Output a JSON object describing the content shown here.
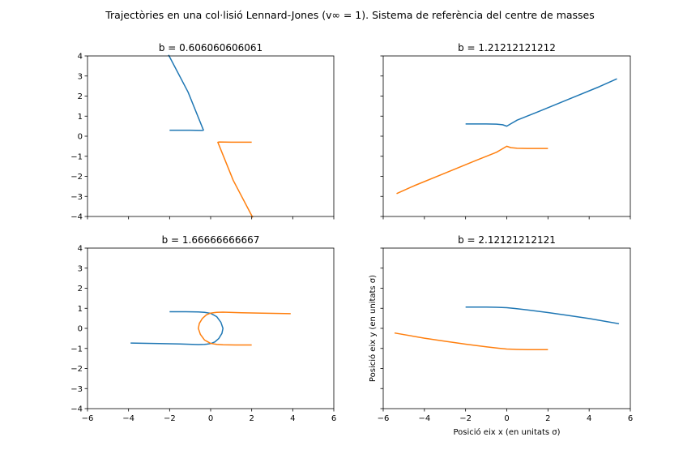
{
  "figure": {
    "title": "Trajectòries en una col·lisió Lennard-Jones (v∞ = 1). Sistema de referència del centre de masses"
  },
  "colors": {
    "series1": "#1f77b4",
    "series2": "#ff7f0e"
  },
  "chart_data": [
    {
      "type": "line",
      "title": "b = 0.606060606061",
      "xlim": [
        -6,
        6
      ],
      "ylim": [
        -4,
        4
      ],
      "xticks": [
        -6,
        -4,
        -2,
        0,
        2,
        4,
        6
      ],
      "yticks": [
        -4,
        -3,
        -2,
        -1,
        0,
        1,
        2,
        3,
        4
      ],
      "show_xticklabels": false,
      "show_yticklabels": true,
      "xlabel": "",
      "ylabel": "",
      "series": [
        {
          "x": [
            -2.0,
            -1.0,
            -0.4,
            -0.35,
            -1.1,
            -2.05
          ],
          "y": [
            0.3,
            0.3,
            0.29,
            0.3,
            2.2,
            4.05
          ]
        },
        {
          "x": [
            2.0,
            1.0,
            0.4,
            0.35,
            1.1,
            2.05
          ],
          "y": [
            -0.3,
            -0.3,
            -0.29,
            -0.3,
            -2.2,
            -4.05
          ]
        }
      ]
    },
    {
      "type": "line",
      "title": "b = 1.21212121212",
      "xlim": [
        -6,
        6
      ],
      "ylim": [
        -4,
        4
      ],
      "xticks": [
        -6,
        -4,
        -2,
        0,
        2,
        4,
        6
      ],
      "yticks": [
        -4,
        -3,
        -2,
        -1,
        0,
        1,
        2,
        3,
        4
      ],
      "show_xticklabels": false,
      "show_yticklabels": false,
      "xlabel": "",
      "ylabel": "",
      "series": [
        {
          "x": [
            -2.0,
            -1.0,
            -0.5,
            -0.2,
            0.0,
            0.2,
            0.5,
            1.5,
            3.0,
            4.5,
            5.35
          ],
          "y": [
            0.61,
            0.61,
            0.6,
            0.57,
            0.5,
            0.62,
            0.8,
            1.21,
            1.84,
            2.47,
            2.86
          ]
        },
        {
          "x": [
            2.0,
            1.0,
            0.5,
            0.2,
            0.0,
            -0.2,
            -0.5,
            -1.5,
            -3.0,
            -4.5,
            -5.35
          ],
          "y": [
            -0.61,
            -0.61,
            -0.6,
            -0.57,
            -0.5,
            -0.62,
            -0.8,
            -1.21,
            -1.84,
            -2.47,
            -2.86
          ]
        }
      ]
    },
    {
      "type": "line",
      "title": "b = 1.66666666667",
      "xlim": [
        -6,
        6
      ],
      "ylim": [
        -4,
        4
      ],
      "xticks": [
        -6,
        -4,
        -2,
        0,
        2,
        4,
        6
      ],
      "yticks": [
        -4,
        -3,
        -2,
        -1,
        0,
        1,
        2,
        3,
        4
      ],
      "show_xticklabels": true,
      "show_yticklabels": true,
      "xlabel": "",
      "ylabel": "",
      "series": [
        {
          "x": [
            -2.0,
            -1.2,
            -0.6,
            -0.3,
            0.0,
            0.3,
            0.5,
            0.6,
            0.55,
            0.4,
            0.2,
            0.0,
            -0.2,
            -0.3,
            -0.6,
            -1.5,
            -2.5,
            -3.9
          ],
          "y": [
            0.83,
            0.83,
            0.82,
            0.8,
            0.75,
            0.58,
            0.3,
            0.0,
            -0.25,
            -0.5,
            -0.68,
            -0.76,
            -0.79,
            -0.8,
            -0.81,
            -0.78,
            -0.76,
            -0.73
          ]
        },
        {
          "x": [
            2.0,
            1.2,
            0.6,
            0.3,
            0.0,
            -0.3,
            -0.5,
            -0.6,
            -0.55,
            -0.4,
            -0.2,
            0.0,
            0.2,
            0.3,
            0.6,
            1.5,
            2.5,
            3.9
          ],
          "y": [
            -0.83,
            -0.83,
            -0.82,
            -0.8,
            -0.75,
            -0.58,
            -0.3,
            0.0,
            0.25,
            0.5,
            0.68,
            0.76,
            0.79,
            0.8,
            0.81,
            0.78,
            0.76,
            0.73
          ]
        }
      ]
    },
    {
      "type": "line",
      "title": "b = 2.12121212121",
      "xlim": [
        -6,
        6
      ],
      "ylim": [
        -4,
        4
      ],
      "xticks": [
        -6,
        -4,
        -2,
        0,
        2,
        4,
        6
      ],
      "yticks": [
        -4,
        -3,
        -2,
        -1,
        0,
        1,
        2,
        3,
        4
      ],
      "show_xticklabels": true,
      "show_yticklabels": false,
      "xlabel": "Posició eix x (en unitats σ)",
      "ylabel": "Posició eix y (en unitats σ)",
      "series": [
        {
          "x": [
            -2.0,
            -1.0,
            -0.5,
            0.0,
            0.4,
            1.0,
            2.0,
            3.0,
            4.0,
            5.45
          ],
          "y": [
            1.06,
            1.06,
            1.05,
            1.03,
            0.99,
            0.92,
            0.79,
            0.64,
            0.49,
            0.23
          ]
        },
        {
          "x": [
            2.0,
            1.0,
            0.5,
            0.0,
            -0.4,
            -1.0,
            -2.0,
            -3.0,
            -4.0,
            -5.45
          ],
          "y": [
            -1.06,
            -1.06,
            -1.05,
            -1.03,
            -0.99,
            -0.92,
            -0.79,
            -0.64,
            -0.49,
            -0.23
          ]
        }
      ]
    }
  ]
}
